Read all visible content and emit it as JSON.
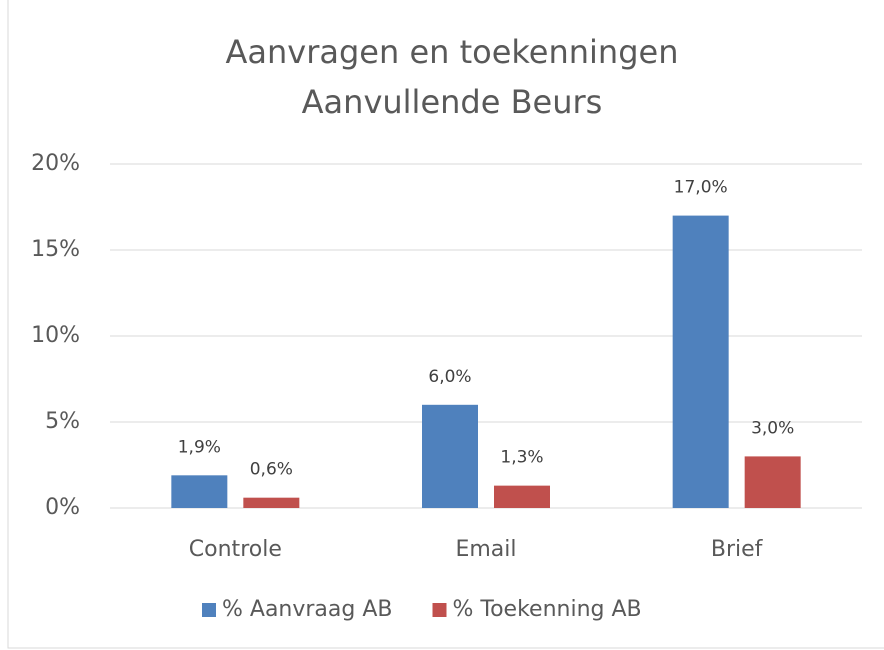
{
  "chart_data": {
    "type": "bar",
    "title": [
      "Aanvragen en toekenningen",
      "Aanvullende Beurs"
    ],
    "categories": [
      "Controle",
      "Email",
      "Brief"
    ],
    "series": [
      {
        "name": "% Aanvraag AB",
        "color": "#4f81bd",
        "values": [
          1.9,
          6.0,
          17.0
        ],
        "value_labels": [
          "1,9%",
          "6,0%",
          "17,0%"
        ]
      },
      {
        "name": "% Toekenning AB",
        "color": "#c0504d",
        "values": [
          0.6,
          1.3,
          3.0
        ],
        "value_labels": [
          "0,6%",
          "1,3%",
          "3,0%"
        ]
      }
    ],
    "ylim": [
      0,
      20
    ],
    "yticks": [
      {
        "value": 0,
        "label": "0%"
      },
      {
        "value": 5,
        "label": "5%"
      },
      {
        "value": 10,
        "label": "10%"
      },
      {
        "value": 15,
        "label": "15%"
      },
      {
        "value": 20,
        "label": "20%"
      }
    ],
    "grid": true,
    "legend": "bottom"
  }
}
